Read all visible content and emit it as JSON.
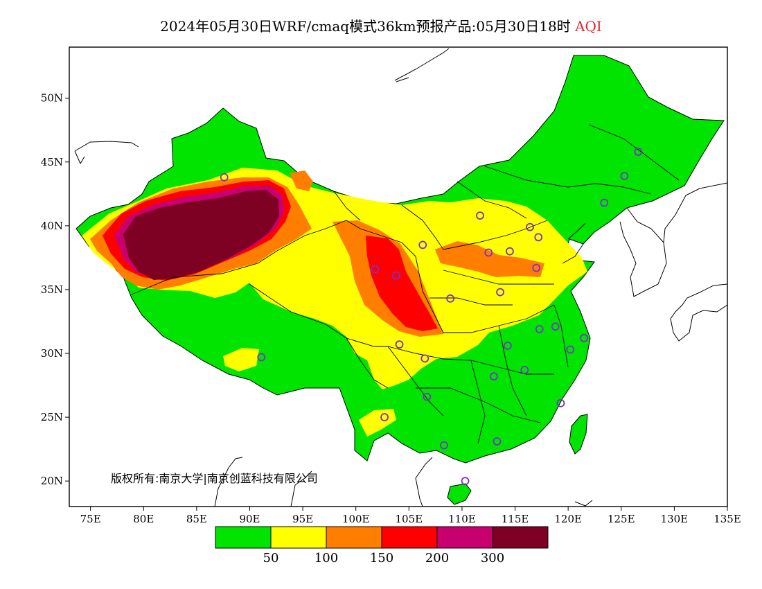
{
  "header": {
    "title_main": "2024年05月30日WRF/cmaq模式36km预报产品:05月30日18时",
    "title_suffix": "AQI",
    "suffix_color": "#e0262b"
  },
  "map": {
    "projection": "lat-lon",
    "lon_range": [
      73,
      135
    ],
    "lat_range": [
      18,
      54
    ],
    "lon_ticks": [
      {
        "v": 75,
        "label": "75E"
      },
      {
        "v": 80,
        "label": "80E"
      },
      {
        "v": 85,
        "label": "85E"
      },
      {
        "v": 90,
        "label": "90E"
      },
      {
        "v": 95,
        "label": "95E"
      },
      {
        "v": 100,
        "label": "100E"
      },
      {
        "v": 105,
        "label": "105E"
      },
      {
        "v": 110,
        "label": "110E"
      },
      {
        "v": 115,
        "label": "115E"
      },
      {
        "v": 120,
        "label": "120E"
      },
      {
        "v": 125,
        "label": "125E"
      },
      {
        "v": 130,
        "label": "130E"
      },
      {
        "v": 135,
        "label": "135E"
      }
    ],
    "lat_ticks": [
      {
        "v": 50,
        "label": "50N"
      },
      {
        "v": 45,
        "label": "45N"
      },
      {
        "v": 40,
        "label": "40N"
      },
      {
        "v": 35,
        "label": "35N"
      },
      {
        "v": 30,
        "label": "30N"
      },
      {
        "v": 25,
        "label": "25N"
      },
      {
        "v": 20,
        "label": "20N"
      }
    ],
    "copyright": "版权所有:南京大学|南京创蓝科技有限公司",
    "station_color": "#7d2fd1",
    "stations": [
      {
        "lon": 87.6,
        "lat": 43.8
      },
      {
        "lon": 91.1,
        "lat": 29.7
      },
      {
        "lon": 101.8,
        "lat": 36.6
      },
      {
        "lon": 103.8,
        "lat": 36.1
      },
      {
        "lon": 106.3,
        "lat": 38.5
      },
      {
        "lon": 111.7,
        "lat": 40.8
      },
      {
        "lon": 116.4,
        "lat": 39.9
      },
      {
        "lon": 117.2,
        "lat": 39.1
      },
      {
        "lon": 114.5,
        "lat": 38.0
      },
      {
        "lon": 112.5,
        "lat": 37.9
      },
      {
        "lon": 117.0,
        "lat": 36.7
      },
      {
        "lon": 113.6,
        "lat": 34.8
      },
      {
        "lon": 108.9,
        "lat": 34.3
      },
      {
        "lon": 104.1,
        "lat": 30.7
      },
      {
        "lon": 106.5,
        "lat": 29.6
      },
      {
        "lon": 106.7,
        "lat": 26.6
      },
      {
        "lon": 102.7,
        "lat": 25.0
      },
      {
        "lon": 108.3,
        "lat": 22.8
      },
      {
        "lon": 113.3,
        "lat": 23.1
      },
      {
        "lon": 110.3,
        "lat": 20.0
      },
      {
        "lon": 113.0,
        "lat": 28.2
      },
      {
        "lon": 115.9,
        "lat": 28.7
      },
      {
        "lon": 114.3,
        "lat": 30.6
      },
      {
        "lon": 117.3,
        "lat": 31.9
      },
      {
        "lon": 118.8,
        "lat": 32.1
      },
      {
        "lon": 120.2,
        "lat": 30.3
      },
      {
        "lon": 121.5,
        "lat": 31.2
      },
      {
        "lon": 119.3,
        "lat": 26.1
      },
      {
        "lon": 123.4,
        "lat": 41.8
      },
      {
        "lon": 125.3,
        "lat": 43.9
      },
      {
        "lon": 126.6,
        "lat": 45.8
      }
    ]
  },
  "legend": {
    "colors": [
      "#00e400",
      "#ffff00",
      "#ff7e00",
      "#ff0000",
      "#c8006f",
      "#7e0023"
    ],
    "labels": [
      "50",
      "100",
      "150",
      "200",
      "300"
    ]
  }
}
